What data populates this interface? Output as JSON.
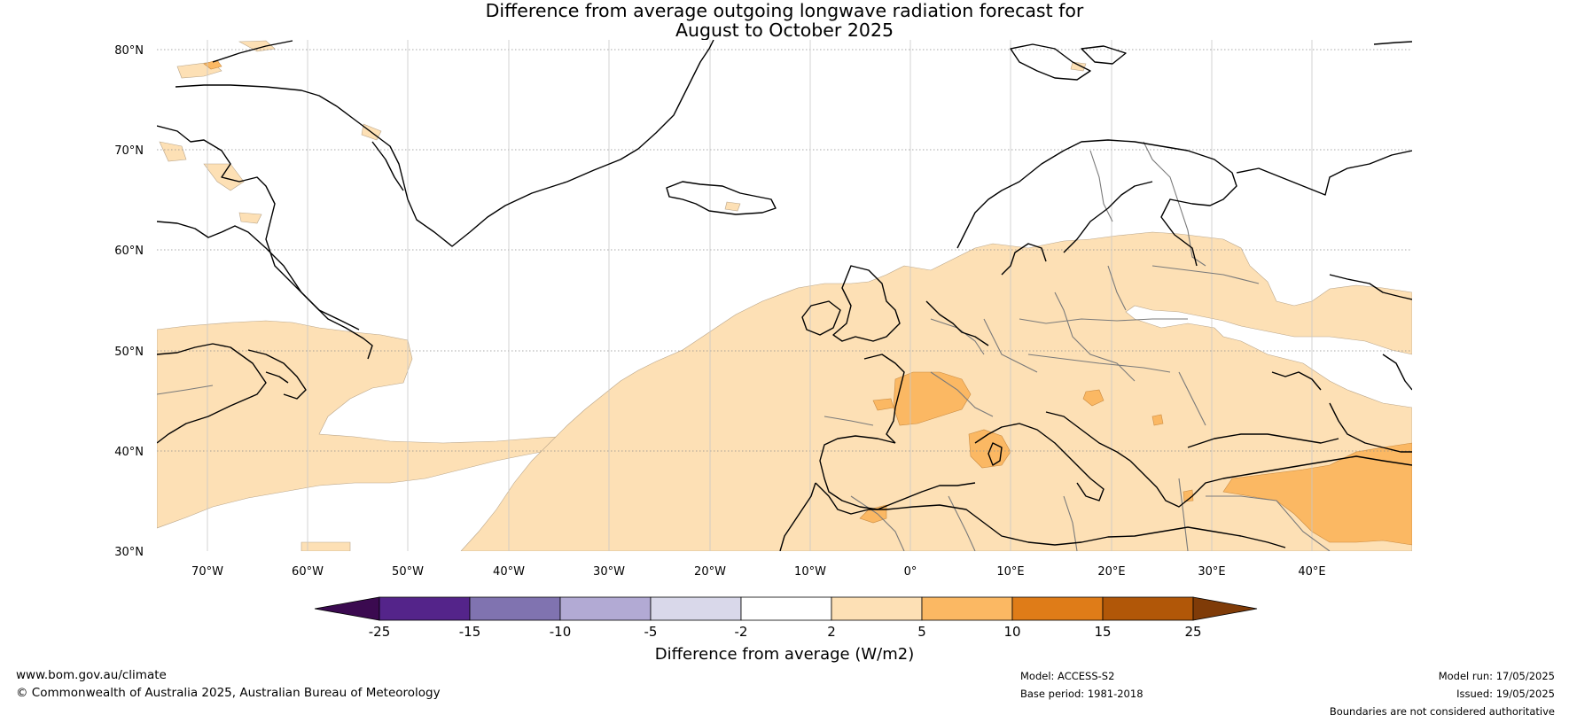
{
  "title": {
    "line1": "Difference from average outgoing longwave radiation forecast for",
    "line2": "August to October 2025"
  },
  "map": {
    "latitude_labels": [
      "80°N",
      "70°N",
      "60°N",
      "50°N",
      "40°N",
      "30°N"
    ],
    "longitude_labels": [
      "70°W",
      "60°W",
      "50°W",
      "40°W",
      "30°W",
      "20°W",
      "10°W",
      "0°",
      "10°E",
      "20°E",
      "30°E",
      "40°E"
    ],
    "extent": {
      "lon": [
        -75,
        50
      ],
      "lat": [
        30,
        81
      ]
    },
    "gridlines": true
  },
  "colorbar": {
    "label": "Difference from average (W/m2)",
    "ticks": [
      "-25",
      "-15",
      "-10",
      "-5",
      "-2",
      "2",
      "5",
      "10",
      "15",
      "25"
    ],
    "colors": {
      "below_-25": "#3b0a50",
      "-25_-15": "#54248a",
      "-15_-10": "#8073b0",
      "-10_-5": "#b2aad4",
      "-5_-2": "#d9d8ea",
      "-2_2": "#ffffff",
      "2_5": "#fde0b5",
      "5_10": "#fbb863",
      "10_15": "#df7c18",
      "15_25": "#b15708",
      "above_25": "#7f3b08"
    }
  },
  "footer": {
    "website": "www.bom.gov.au/climate",
    "copyright": "© Commonwealth of Australia 2025, Australian Bureau of Meteorology",
    "model": "Model: ACCESS-S2",
    "base_period": "Base period: 1981-2018",
    "model_run": "Model run: 17/05/2025",
    "issued": "Issued: 19/05/2025",
    "disclaimer": "Boundaries are not considered authoritative"
  }
}
